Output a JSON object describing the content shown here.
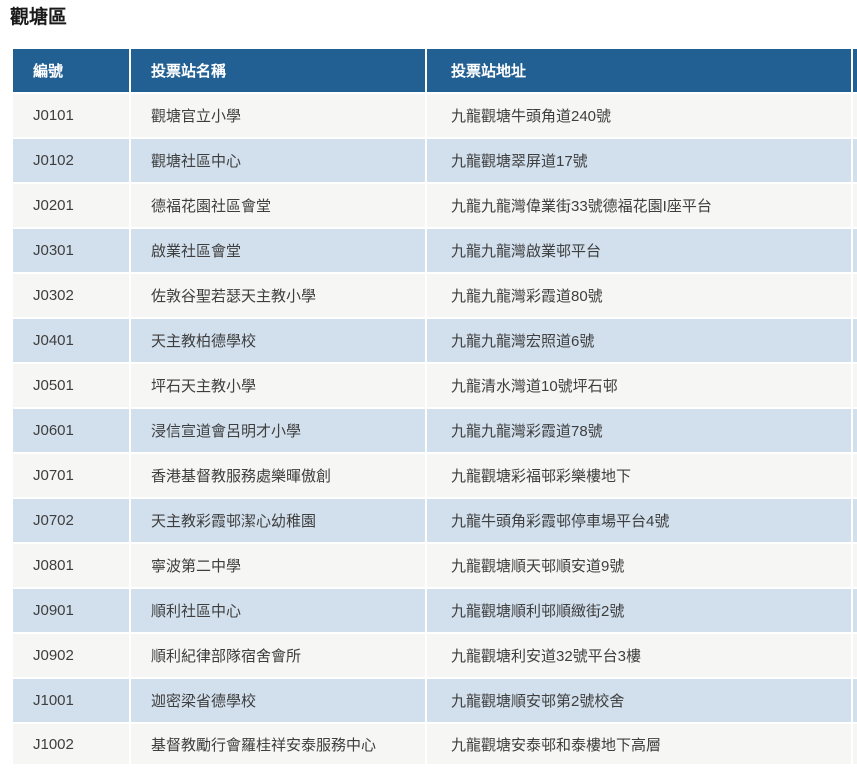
{
  "title": "觀塘區",
  "table": {
    "headers": [
      "編號",
      "投票站名稱",
      "投票站地址"
    ],
    "rows": [
      {
        "code": "J0101",
        "name": "觀塘官立小學",
        "address": "九龍觀塘牛頭角道240號"
      },
      {
        "code": "J0102",
        "name": "觀塘社區中心",
        "address": "九龍觀塘翠屏道17號"
      },
      {
        "code": "J0201",
        "name": "德福花園社區會堂",
        "address": "九龍九龍灣偉業街33號德福花園I座平台"
      },
      {
        "code": "J0301",
        "name": "啟業社區會堂",
        "address": "九龍九龍灣啟業邨平台"
      },
      {
        "code": "J0302",
        "name": "佐敦谷聖若瑟天主教小學",
        "address": "九龍九龍灣彩霞道80號"
      },
      {
        "code": "J0401",
        "name": "天主教柏德學校",
        "address": "九龍九龍灣宏照道6號"
      },
      {
        "code": "J0501",
        "name": "坪石天主教小學",
        "address": "九龍清水灣道10號坪石邨"
      },
      {
        "code": "J0601",
        "name": "浸信宣道會呂明才小學",
        "address": "九龍九龍灣彩霞道78號"
      },
      {
        "code": "J0701",
        "name": "香港基督教服務處樂暉傲創",
        "address": "九龍觀塘彩福邨彩樂樓地下"
      },
      {
        "code": "J0702",
        "name": "天主教彩霞邨潔心幼稚園",
        "address": "九龍牛頭角彩霞邨停車場平台4號"
      },
      {
        "code": "J0801",
        "name": "寧波第二中學",
        "address": "九龍觀塘順天邨順安道9號"
      },
      {
        "code": "J0901",
        "name": "順利社區中心",
        "address": "九龍觀塘順利邨順緻街2號"
      },
      {
        "code": "J0902",
        "name": "順利紀律部隊宿舍會所",
        "address": "九龍觀塘利安道32號平台3樓"
      },
      {
        "code": "J1001",
        "name": "迦密梁省德學校",
        "address": "九龍觀塘順安邨第2號校舍"
      },
      {
        "code": "J1002",
        "name": "基督教勵行會羅桂祥安泰服務中心",
        "address": "九龍觀塘安泰邨和泰樓地下高層"
      }
    ]
  },
  "colors": {
    "header_bg": "#225f92",
    "header_text": "#ffffff",
    "row_odd_bg": "#f6f6f4",
    "row_even_bg": "#d2e0ed",
    "cell_text": "#3e3e3e",
    "title_text": "#1a1a1a",
    "separator": "#ffffff"
  }
}
